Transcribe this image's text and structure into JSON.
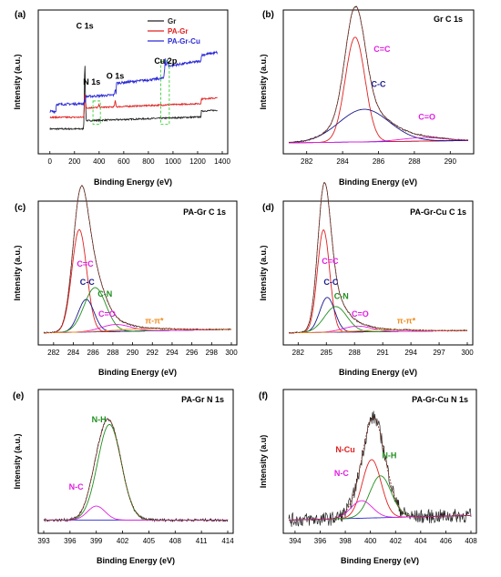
{
  "colors": {
    "black": "#222222",
    "red": "#e02020",
    "blue": "#2b2bd6",
    "magenta": "#e020e0",
    "navy": "#1a1a8c",
    "green": "#1f8f1f",
    "orange": "#f08c1e",
    "envelope": "#8b2a1a",
    "dash_green": "#22cc22"
  },
  "chart_data": [
    {
      "panel": "(a)",
      "type": "line",
      "title": "",
      "xlabel": "Binding Energy (eV)",
      "ylabel": "Intensity (a.u.)",
      "xlim": [
        -50,
        1400
      ],
      "xticks": [
        0,
        200,
        400,
        600,
        800,
        1000,
        1200,
        1400
      ],
      "legend": {
        "position": "top-right",
        "entries": [
          "Gr",
          "PA-Gr",
          "PA-Gr-Cu"
        ]
      },
      "series": [
        {
          "name": "Gr",
          "color": "black",
          "baseline": 0.12,
          "offset": 0.0,
          "peaks": [
            [
              284,
              0.55,
              4
            ]
          ],
          "steps": [
            [
              290,
              0.07
            ],
            [
              1230,
              0.05
            ]
          ],
          "noise": 0.006
        },
        {
          "name": "PA-Gr",
          "color": "red",
          "baseline": 0.22,
          "offset": 0.0,
          "peaks": [
            [
              284,
              0.2,
              4
            ],
            [
              399,
              0.02,
              4
            ],
            [
              531,
              0.05,
              4
            ]
          ],
          "steps": [
            [
              290,
              0.08
            ],
            [
              1230,
              0.04
            ]
          ],
          "noise": 0.006
        },
        {
          "name": "PA-Gr-Cu",
          "color": "blue",
          "baseline": 0.27,
          "offset": 0.0,
          "peaks": [
            [
              284,
              0.03,
              4
            ],
            [
              531,
              0.05,
              4
            ],
            [
              933,
              0.09,
              4
            ],
            [
              953,
              0.05,
              4
            ]
          ],
          "steps": [
            [
              50,
              0.06
            ],
            [
              290,
              0.06
            ],
            [
              540,
              0.1
            ],
            [
              935,
              0.1
            ],
            [
              1230,
              0.05
            ]
          ],
          "noise": 0.01
        }
      ],
      "annotations": [
        {
          "text": "C 1s",
          "x": 284,
          "y": 0.98
        },
        {
          "text": "N 1s",
          "x": 340,
          "y": 0.5
        },
        {
          "text": "O 1s",
          "x": 531,
          "y": 0.55
        },
        {
          "text": "Cu 2p",
          "x": 940,
          "y": 0.68
        }
      ]
    },
    {
      "panel": "(b)",
      "type": "line",
      "title": "Gr  C 1s",
      "xlabel": "Binding Energy (eV)",
      "ylabel": "Intensity (a.u.)",
      "xlim": [
        281,
        291
      ],
      "xticks": [
        282,
        284,
        286,
        288,
        290
      ],
      "background": [
        0.0,
        0.02
      ],
      "components": [
        {
          "label": "C=C",
          "color": "red",
          "center": 284.7,
          "height": 0.9,
          "width": 0.55
        },
        {
          "label": "C-C",
          "color": "navy",
          "center": 285.2,
          "height": 0.28,
          "width": 1.4
        },
        {
          "label": "C=O",
          "color": "magenta",
          "center": 288.5,
          "height": 0.03,
          "width": 1.2
        }
      ],
      "annotations": [
        {
          "text": "C=C",
          "color": "magenta",
          "x": 286.2,
          "y": 0.78
        },
        {
          "text": "C-C",
          "color": "navy",
          "x": 286.0,
          "y": 0.48
        },
        {
          "text": "C=O",
          "color": "magenta",
          "x": 288.7,
          "y": 0.2
        }
      ]
    },
    {
      "panel": "(c)",
      "type": "line",
      "title": "PA-Gr  C 1s",
      "xlabel": "Binding Energy (eV)",
      "ylabel": "Intensity (a.u.)",
      "xlim": [
        281,
        300
      ],
      "xticks": [
        282,
        284,
        286,
        288,
        290,
        292,
        294,
        296,
        298,
        300
      ],
      "background": [
        0.01,
        0.04
      ],
      "components": [
        {
          "label": "C=C",
          "color": "red",
          "center": 284.6,
          "height": 0.88,
          "width": 0.75
        },
        {
          "label": "C-C",
          "color": "navy",
          "center": 285.3,
          "height": 0.28,
          "width": 0.8
        },
        {
          "label": "C-N",
          "color": "green",
          "center": 286.2,
          "height": 0.38,
          "width": 1.1
        },
        {
          "label": "C=O",
          "color": "magenta",
          "center": 288.3,
          "height": 0.06,
          "width": 1.5
        },
        {
          "label": "π-π*",
          "color": "orange",
          "center": 291.5,
          "height": 0.02,
          "width": 3.0
        }
      ],
      "annotations": [
        {
          "text": "C=C",
          "color": "magenta",
          "x": 285.2,
          "y": 0.58
        },
        {
          "text": "C-C",
          "color": "navy",
          "x": 285.4,
          "y": 0.42
        },
        {
          "text": "C-N",
          "color": "green",
          "x": 287.2,
          "y": 0.32
        },
        {
          "text": "C=O",
          "color": "magenta",
          "x": 287.4,
          "y": 0.15
        },
        {
          "text": "π-π*",
          "color": "orange",
          "x": 292.2,
          "y": 0.09
        }
      ]
    },
    {
      "panel": "(d)",
      "type": "line",
      "title": "PA-Gr-Cu  C 1s",
      "xlabel": "Binding Energy (eV)",
      "ylabel": "Intensity (a.u.)",
      "xlim": [
        281,
        300
      ],
      "xticks": [
        282,
        285,
        288,
        291,
        294,
        297,
        300
      ],
      "background": [
        0.01,
        0.03
      ],
      "components": [
        {
          "label": "C=C",
          "color": "red",
          "center": 284.7,
          "height": 0.88,
          "width": 0.65
        },
        {
          "label": "C-C",
          "color": "navy",
          "center": 285.1,
          "height": 0.3,
          "width": 0.8
        },
        {
          "label": "C-N",
          "color": "green",
          "center": 286.0,
          "height": 0.22,
          "width": 1.2
        },
        {
          "label": "C=O",
          "color": "magenta",
          "center": 288.3,
          "height": 0.05,
          "width": 1.5
        },
        {
          "label": "π-π*",
          "color": "orange",
          "center": 291.5,
          "height": 0.015,
          "width": 3.0
        }
      ],
      "annotations": [
        {
          "text": "C=C",
          "color": "magenta",
          "x": 285.4,
          "y": 0.6
        },
        {
          "text": "C-C",
          "color": "navy",
          "x": 285.5,
          "y": 0.42
        },
        {
          "text": "C-N",
          "color": "green",
          "x": 286.6,
          "y": 0.3
        },
        {
          "text": "C=O",
          "color": "magenta",
          "x": 288.6,
          "y": 0.15
        },
        {
          "text": "π-π*",
          "color": "orange",
          "x": 293.5,
          "y": 0.09
        }
      ]
    },
    {
      "panel": "(e)",
      "type": "line",
      "title": "PA-Gr  N 1s",
      "xlabel": "Binding Energy (eV)",
      "ylabel": "Intensity (a.u.)",
      "xlim": [
        393,
        414
      ],
      "xticks": [
        393,
        396,
        399,
        402,
        405,
        408,
        411,
        414
      ],
      "background": [
        0.02,
        0.02
      ],
      "components": [
        {
          "label": "N-H",
          "color": "green",
          "center": 400.5,
          "height": 0.82,
          "width": 1.35
        },
        {
          "label": "N-C",
          "color": "magenta",
          "center": 399.0,
          "height": 0.12,
          "width": 1.0
        }
      ],
      "noise": 0.012,
      "annotations": [
        {
          "text": "N-H",
          "color": "green",
          "x": 399.3,
          "y": 0.86
        },
        {
          "text": "N-C",
          "color": "magenta",
          "x": 396.7,
          "y": 0.28
        }
      ]
    },
    {
      "panel": "(f)",
      "type": "line",
      "title": "PA-Gr-Cu  N 1s",
      "xlabel": "Binding Energy (eV)",
      "ylabel": "Intensity (a.u)",
      "xlim": [
        393.5,
        408
      ],
      "xticks": [
        394,
        396,
        398,
        400,
        402,
        404,
        406,
        408
      ],
      "background": [
        0.02,
        0.06
      ],
      "components": [
        {
          "label": "N-Cu",
          "color": "red",
          "center": 400.1,
          "height": 0.5,
          "width": 0.75
        },
        {
          "label": "N-H",
          "color": "green",
          "center": 400.8,
          "height": 0.36,
          "width": 0.85
        },
        {
          "label": "N-C",
          "color": "magenta",
          "center": 399.3,
          "height": 0.15,
          "width": 0.85
        }
      ],
      "noise": 0.06,
      "annotations": [
        {
          "text": "N-Cu",
          "color": "red",
          "x": 398.0,
          "y": 0.6
        },
        {
          "text": "N-H",
          "color": "green",
          "x": 401.5,
          "y": 0.55
        },
        {
          "text": "N-C",
          "color": "magenta",
          "x": 397.7,
          "y": 0.4
        }
      ]
    }
  ]
}
